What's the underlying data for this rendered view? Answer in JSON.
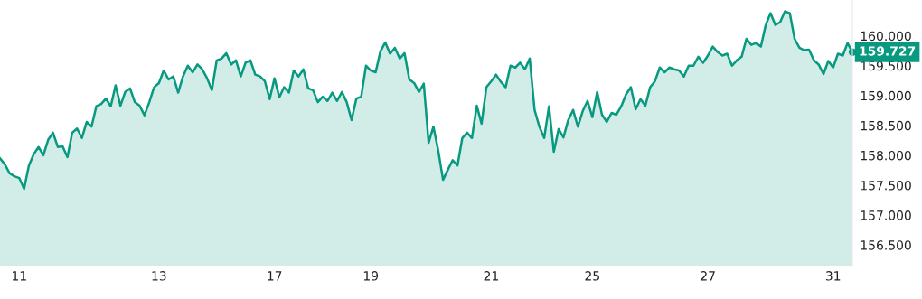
{
  "chart_data": {
    "type": "area",
    "categories": [
      null,
      null,
      null,
      null,
      "11",
      null,
      null,
      null,
      null,
      null,
      null,
      null,
      null,
      null,
      null,
      null,
      null,
      null,
      null,
      null,
      null,
      null,
      null,
      null,
      null,
      null,
      null,
      null,
      null,
      null,
      null,
      null,
      null,
      "13",
      null,
      null,
      null,
      null,
      null,
      null,
      null,
      null,
      null,
      null,
      null,
      null,
      null,
      null,
      null,
      null,
      null,
      null,
      null,
      null,
      null,
      null,
      null,
      "17",
      null,
      null,
      null,
      null,
      null,
      null,
      null,
      null,
      null,
      null,
      null,
      null,
      null,
      null,
      null,
      null,
      null,
      null,
      null,
      "19",
      null,
      null,
      null,
      null,
      null,
      null,
      null,
      null,
      null,
      null,
      null,
      null,
      null,
      null,
      null,
      null,
      null,
      null,
      null,
      null,
      null,
      null,
      null,
      null,
      "21",
      null,
      null,
      null,
      null,
      null,
      null,
      null,
      null,
      null,
      null,
      null,
      null,
      null,
      null,
      null,
      null,
      null,
      null,
      null,
      null,
      "25",
      null,
      null,
      null,
      null,
      null,
      null,
      null,
      null,
      null,
      null,
      null,
      null,
      null,
      null,
      null,
      null,
      null,
      null,
      null,
      null,
      null,
      null,
      null,
      "27",
      null,
      null,
      null,
      null,
      null,
      null,
      null,
      null,
      null,
      null,
      null,
      null,
      null,
      null,
      null,
      null,
      null,
      null,
      null,
      null,
      null,
      null,
      null,
      null,
      null,
      "31",
      null,
      null,
      null,
      null
    ],
    "series": [
      {
        "color": "#089981",
        "values": [
          157.95,
          157.85,
          157.7,
          157.65,
          157.62,
          157.44,
          157.83,
          158.02,
          158.14,
          158.0,
          158.26,
          158.38,
          158.14,
          158.15,
          157.97,
          158.38,
          158.45,
          158.29,
          158.56,
          158.48,
          158.82,
          158.86,
          158.95,
          158.82,
          159.17,
          158.83,
          159.06,
          159.12,
          158.89,
          158.83,
          158.67,
          158.89,
          159.14,
          159.21,
          159.42,
          159.27,
          159.32,
          159.05,
          159.32,
          159.5,
          159.39,
          159.52,
          159.44,
          159.29,
          159.09,
          159.59,
          159.62,
          159.71,
          159.52,
          159.59,
          159.32,
          159.55,
          159.59,
          159.35,
          159.32,
          159.24,
          158.94,
          159.29,
          158.97,
          159.14,
          159.05,
          159.42,
          159.32,
          159.44,
          159.12,
          159.09,
          158.89,
          158.98,
          158.91,
          159.05,
          158.91,
          159.06,
          158.89,
          158.59,
          158.95,
          158.98,
          159.5,
          159.42,
          159.39,
          159.74,
          159.89,
          159.7,
          159.8,
          159.62,
          159.71,
          159.27,
          159.21,
          159.06,
          159.2,
          158.21,
          158.48,
          158.08,
          157.59,
          157.76,
          157.92,
          157.83,
          158.29,
          158.38,
          158.29,
          158.83,
          158.53,
          159.14,
          159.24,
          159.35,
          159.23,
          159.14,
          159.5,
          159.47,
          159.55,
          159.44,
          159.62,
          158.76,
          158.48,
          158.29,
          158.82,
          158.06,
          158.44,
          158.3,
          158.59,
          158.76,
          158.48,
          158.74,
          158.91,
          158.64,
          159.06,
          158.68,
          158.56,
          158.71,
          158.68,
          158.82,
          159.02,
          159.14,
          158.77,
          158.94,
          158.83,
          159.14,
          159.24,
          159.47,
          159.39,
          159.47,
          159.44,
          159.42,
          159.32,
          159.5,
          159.5,
          159.65,
          159.55,
          159.67,
          159.82,
          159.73,
          159.67,
          159.7,
          159.5,
          159.59,
          159.65,
          159.95,
          159.85,
          159.88,
          159.82,
          160.18,
          160.38,
          160.18,
          160.23,
          160.41,
          160.38,
          159.95,
          159.8,
          159.76,
          159.77,
          159.59,
          159.52,
          159.36,
          159.58,
          159.47,
          159.7,
          159.67,
          159.88,
          159.727
        ]
      }
    ],
    "ylim": [
      156.14,
      160.6
    ],
    "yticks": [
      {
        "value": 156.5,
        "label": "156.500"
      },
      {
        "value": 157,
        "label": "157.000"
      },
      {
        "value": 157.5,
        "label": "157.500"
      },
      {
        "value": 158,
        "label": "158.000"
      },
      {
        "value": 158.5,
        "label": "158.500"
      },
      {
        "value": 159,
        "label": "159.000"
      },
      {
        "value": 159.5,
        "label": "159.500"
      },
      {
        "value": 160,
        "label": "160.000"
      }
    ],
    "annotations": [
      "159.727"
    ],
    "grid": false
  }
}
